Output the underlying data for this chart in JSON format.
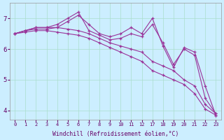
{
  "bg_color": "#cceeff",
  "line_color": "#993399",
  "grid_color": "#aaddcc",
  "ylim": [
    3.7,
    7.5
  ],
  "yticks": [
    4,
    5,
    6,
    7
  ],
  "xtick_labels": [
    "0",
    "1",
    "2",
    "3",
    "4",
    "5",
    "6",
    "7",
    "8",
    "9",
    "10",
    "11",
    "12",
    "17",
    "18",
    "19",
    "20",
    "21",
    "22",
    "23"
  ],
  "xlabel": "Windchill (Refroidissement éolien,°C)",
  "series": [
    [
      6.5,
      6.6,
      6.7,
      6.7,
      6.7,
      6.9,
      7.1,
      6.8,
      6.5,
      6.4,
      6.5,
      6.7,
      6.5,
      7.0,
      6.1,
      5.4,
      6.05,
      5.9,
      4.8,
      3.85
    ],
    [
      6.5,
      6.6,
      6.7,
      6.7,
      6.8,
      7.0,
      7.2,
      6.6,
      6.45,
      6.3,
      6.35,
      6.5,
      6.4,
      6.8,
      6.2,
      5.5,
      6.0,
      5.8,
      4.4,
      3.9
    ],
    [
      6.5,
      6.6,
      6.65,
      6.65,
      6.7,
      6.65,
      6.6,
      6.5,
      6.35,
      6.2,
      6.1,
      6.0,
      5.9,
      5.6,
      5.45,
      5.3,
      5.0,
      4.8,
      4.2,
      3.9
    ],
    [
      6.5,
      6.55,
      6.6,
      6.6,
      6.55,
      6.5,
      6.45,
      6.35,
      6.2,
      6.05,
      5.9,
      5.75,
      5.6,
      5.3,
      5.15,
      5.0,
      4.85,
      4.55,
      4.05,
      3.85
    ]
  ]
}
